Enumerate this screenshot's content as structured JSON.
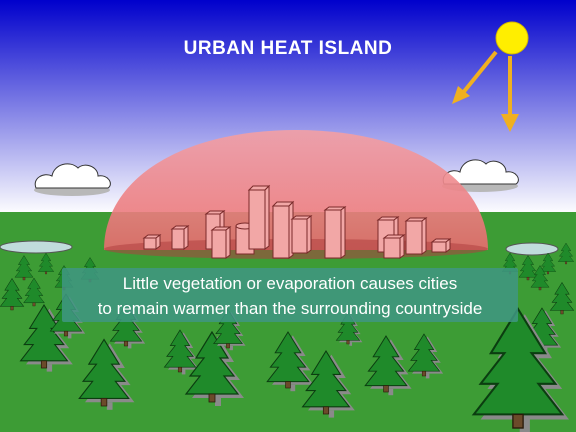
{
  "title": "URBAN HEAT ISLAND",
  "caption": {
    "line1": "Little vegetation or evaporation causes cities",
    "line2": "to remain warmer than the surrounding countryside"
  },
  "colors": {
    "sky_top": "#0000cc",
    "sky_bottom": "#ffffff",
    "ground": "#3d9c35",
    "dome": "#f0787a",
    "sun": "#ffee00",
    "ray": "#f0b020",
    "building": "#f2a7a6",
    "tree": "#1f8a2a",
    "pond": "#c0dcdc"
  },
  "icons": [
    "sun-icon",
    "cloud-icon",
    "tree-icon",
    "building-icon",
    "pond-icon"
  ]
}
